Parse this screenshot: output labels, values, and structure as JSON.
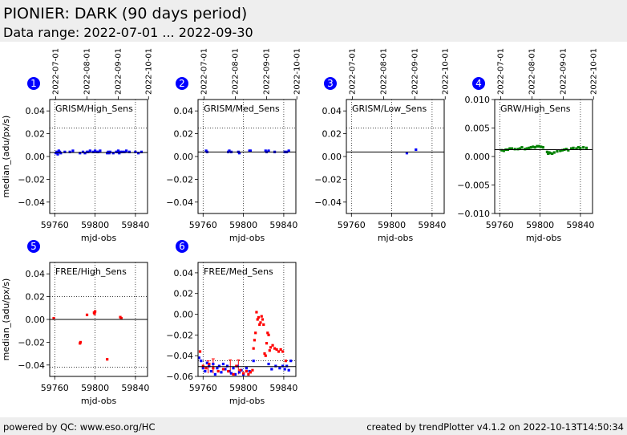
{
  "header": {
    "title": "PIONIER: DARK (90 days period)",
    "subtitle": "Data range: 2022-07-01 ... 2022-09-30"
  },
  "footer": {
    "left": "powered by QC: www.eso.org/HC",
    "right": "created by trendPlotter v4.1.2 on 2022-10-13T14:50:34"
  },
  "colors": {
    "blue": "#0000ff",
    "green": "#008000",
    "red": "#ff0000",
    "badge": "#0000ff"
  },
  "chart_data": [
    {
      "type": "scatter",
      "index": "1",
      "label": "GRISM/High_Sens",
      "xlabel": "mjd-obs",
      "ylabel": "median_(adu/px/s)",
      "xlim": [
        59755,
        59852
      ],
      "ylim": [
        -0.05,
        0.05
      ],
      "xticks": [
        59760,
        59800,
        59840
      ],
      "xtick_labels": [
        "59760",
        "59800",
        "59840"
      ],
      "yticks": [
        0.04,
        0.02,
        0.0,
        -0.02,
        -0.04
      ],
      "ytick_labels": [
        "0.04",
        "0.02",
        "0.00",
        "−0.02",
        "−0.04"
      ],
      "top_ticks": [
        59761,
        59792,
        59823,
        59853
      ],
      "top_labels": [
        "2022-07-01",
        "2022-08-01",
        "2022-09-01",
        "2022-10-01"
      ],
      "hline": 0.0035,
      "dotted_hlines": [
        0.025
      ],
      "series": [
        {
          "color": "blue",
          "x": [
            59761,
            59762,
            59763,
            59764,
            59765,
            59766,
            59770,
            59775,
            59778,
            59785,
            59788,
            59790,
            59792,
            59793,
            59795,
            59798,
            59800,
            59802,
            59803,
            59805,
            59812,
            59813,
            59814,
            59815,
            59818,
            59821,
            59822,
            59823,
            59824,
            59825,
            59827,
            59829,
            59831,
            59834,
            59840,
            59843,
            59846
          ],
          "y": [
            0.003,
            0.004,
            0.002,
            0.005,
            0.004,
            0.003,
            0.004,
            0.004,
            0.005,
            0.003,
            0.004,
            0.003,
            0.004,
            0.004,
            0.005,
            0.004,
            0.005,
            0.004,
            0.004,
            0.005,
            0.003,
            0.004,
            0.003,
            0.004,
            0.003,
            0.004,
            0.004,
            0.005,
            0.003,
            0.004,
            0.004,
            0.004,
            0.005,
            0.004,
            0.004,
            0.003,
            0.004
          ]
        }
      ]
    },
    {
      "type": "scatter",
      "index": "2",
      "label": "GRISM/Med_Sens",
      "xlabel": "mjd-obs",
      "ylabel": "",
      "xlim": [
        59755,
        59852
      ],
      "ylim": [
        -0.05,
        0.05
      ],
      "xticks": [
        59760,
        59800,
        59840
      ],
      "xtick_labels": [
        "59760",
        "59800",
        "59840"
      ],
      "yticks": [
        0.04,
        0.02,
        0.0,
        -0.02,
        -0.04
      ],
      "ytick_labels": [
        "0.04",
        "0.02",
        "0.00",
        "−0.02",
        "−0.04"
      ],
      "top_ticks": [
        59761,
        59792,
        59823,
        59853
      ],
      "top_labels": [
        "2022-07-01",
        "2022-08-01",
        "2022-09-01",
        "2022-10-01"
      ],
      "hline": 0.004,
      "dotted_hlines": [
        0.025
      ],
      "series": [
        {
          "color": "blue",
          "x": [
            59763,
            59764,
            59785,
            59786,
            59788,
            59795,
            59796,
            59806,
            59807,
            59822,
            59823,
            59825,
            59831,
            59841,
            59843,
            59845
          ],
          "y": [
            0.005,
            0.004,
            0.004,
            0.005,
            0.004,
            0.004,
            0.003,
            0.005,
            0.005,
            0.005,
            0.004,
            0.005,
            0.004,
            0.004,
            0.004,
            0.005
          ]
        }
      ]
    },
    {
      "type": "scatter",
      "index": "3",
      "label": "GRISM/Low_Sens",
      "xlabel": "mjd-obs",
      "ylabel": "",
      "xlim": [
        59755,
        59852
      ],
      "ylim": [
        -0.05,
        0.05
      ],
      "xticks": [
        59760,
        59800,
        59840
      ],
      "xtick_labels": [
        "59760",
        "59800",
        "59840"
      ],
      "yticks": [
        0.04,
        0.02,
        0.0,
        -0.02,
        -0.04
      ],
      "ytick_labels": [
        "0.04",
        "0.02",
        "0.00",
        "−0.02",
        "−0.04"
      ],
      "top_ticks": [
        59761,
        59792,
        59823,
        59853
      ],
      "top_labels": [
        "2022-07-01",
        "2022-08-01",
        "2022-09-01",
        "2022-10-01"
      ],
      "hline": 0.004,
      "dotted_hlines": [
        0.025
      ],
      "series": [
        {
          "color": "blue",
          "x": [
            59815,
            59824
          ],
          "y": [
            0.003,
            0.006
          ]
        }
      ]
    },
    {
      "type": "scatter",
      "index": "4",
      "label": "GRW/High_Sens",
      "xlabel": "mjd-obs",
      "ylabel": "",
      "xlim": [
        59755,
        59852
      ],
      "ylim": [
        -0.01,
        0.01
      ],
      "xticks": [
        59760,
        59800,
        59840
      ],
      "xtick_labels": [
        "59760",
        "59800",
        "59840"
      ],
      "yticks": [
        0.01,
        0.005,
        0.0,
        -0.005,
        -0.01
      ],
      "ytick_labels": [
        "0.010",
        "0.005",
        "0.000",
        "−0.005",
        "−0.010"
      ],
      "top_ticks": [
        59761,
        59792,
        59823,
        59853
      ],
      "top_labels": [
        "2022-07-01",
        "2022-08-01",
        "2022-09-01",
        "2022-10-01"
      ],
      "hline": 0.0012,
      "dotted_hlines": [],
      "series": [
        {
          "color": "green",
          "x": [
            59762,
            59764,
            59766,
            59768,
            59770,
            59772,
            59775,
            59778,
            59780,
            59782,
            59785,
            59787,
            59789,
            59791,
            59793,
            59795,
            59797,
            59799,
            59801,
            59803,
            59807,
            59808,
            59809,
            59810,
            59812,
            59814,
            59817,
            59820,
            59822,
            59824,
            59826,
            59828,
            59831,
            59833,
            59836,
            59838,
            59840,
            59843,
            59846
          ],
          "y": [
            0.0011,
            0.001,
            0.0012,
            0.0012,
            0.0014,
            0.0014,
            0.0013,
            0.0013,
            0.0014,
            0.0016,
            0.0013,
            0.0014,
            0.0015,
            0.0016,
            0.0017,
            0.0016,
            0.0018,
            0.0018,
            0.0017,
            0.0016,
            0.0008,
            0.0005,
            0.0007,
            0.0006,
            0.0005,
            0.0007,
            0.0009,
            0.001,
            0.0011,
            0.0012,
            0.0013,
            0.0011,
            0.0014,
            0.0015,
            0.0014,
            0.0016,
            0.0015,
            0.0016,
            0.0015
          ]
        }
      ]
    },
    {
      "type": "scatter",
      "index": "5",
      "label": "FREE/High_Sens",
      "xlabel": "mjd-obs",
      "ylabel": "median_(adu/px/s)",
      "xlim": [
        59755,
        59852
      ],
      "ylim": [
        -0.05,
        0.05
      ],
      "xticks": [
        59760,
        59800,
        59840
      ],
      "xtick_labels": [
        "59760",
        "59800",
        "59840"
      ],
      "yticks": [
        0.04,
        0.02,
        0.0,
        -0.02,
        -0.04
      ],
      "ytick_labels": [
        "0.04",
        "0.02",
        "0.00",
        "−0.02",
        "−0.04"
      ],
      "top_ticks": [],
      "top_labels": [],
      "hline": 0.0,
      "dotted_hlines": [
        0.02,
        -0.042
      ],
      "series": [
        {
          "color": "red",
          "x": [
            59759,
            59785,
            59785.5,
            59792,
            59799,
            59799.5,
            59800,
            59812,
            59825,
            59826
          ],
          "y": [
            0.001,
            -0.021,
            -0.02,
            0.004,
            0.006,
            0.005,
            0.007,
            -0.035,
            0.002,
            0.001
          ]
        }
      ]
    },
    {
      "type": "scatter",
      "index": "6",
      "label": "FREE/Med_Sens",
      "xlabel": "mjd-obs",
      "ylabel": "",
      "xlim": [
        59755,
        59852
      ],
      "ylim": [
        -0.06,
        0.05
      ],
      "xticks": [
        59760,
        59800,
        59840
      ],
      "xtick_labels": [
        "59760",
        "59800",
        "59840"
      ],
      "yticks": [
        0.04,
        0.02,
        0.0,
        -0.02,
        -0.04,
        -0.06
      ],
      "ytick_labels": [
        "0.04",
        "0.02",
        "0.00",
        "−0.02",
        "−0.04",
        "−0.06"
      ],
      "top_ticks": [],
      "top_labels": [],
      "hline": -0.0505,
      "dotted_hlines": [
        -0.045
      ],
      "errorbars": {
        "color": "red",
        "x": [
          59765,
          59770,
          59787,
          59795
        ],
        "y_low": [
          -0.057,
          -0.057,
          -0.058,
          -0.058
        ],
        "y_high": [
          -0.045,
          -0.043,
          -0.044,
          -0.044
        ]
      },
      "series": [
        {
          "color": "blue",
          "x": [
            59756,
            59758,
            59760,
            59762,
            59764,
            59766,
            59768,
            59770,
            59772,
            59774,
            59776,
            59778,
            59780,
            59782,
            59784,
            59786,
            59788,
            59790,
            59792,
            59794,
            59796,
            59798,
            59800,
            59803,
            59806,
            59810,
            59825,
            59828,
            59832,
            59836,
            59839,
            59841,
            59843,
            59845,
            59847
          ],
          "y": [
            -0.042,
            -0.045,
            -0.052,
            -0.055,
            -0.047,
            -0.05,
            -0.055,
            -0.048,
            -0.058,
            -0.052,
            -0.05,
            -0.056,
            -0.048,
            -0.053,
            -0.05,
            -0.055,
            -0.057,
            -0.052,
            -0.058,
            -0.05,
            -0.056,
            -0.054,
            -0.058,
            -0.052,
            -0.055,
            -0.045,
            -0.048,
            -0.053,
            -0.05,
            -0.052,
            -0.05,
            -0.053,
            -0.05,
            -0.054,
            -0.045
          ]
        },
        {
          "color": "red",
          "x": [
            59757,
            59760,
            59763,
            59766,
            59770,
            59775,
            59780,
            59785,
            59790,
            59793,
            59797,
            59800,
            59803,
            59805,
            59807,
            59809,
            59810,
            59811,
            59812,
            59813,
            59814,
            59815,
            59816,
            59817,
            59818,
            59819,
            59820,
            59821,
            59822,
            59823,
            59824,
            59825,
            59826,
            59827,
            59829,
            59831,
            59833,
            59835,
            59837,
            59839,
            59842
          ],
          "y": [
            -0.036,
            -0.05,
            -0.052,
            -0.048,
            -0.052,
            -0.055,
            -0.053,
            -0.055,
            -0.058,
            -0.05,
            -0.054,
            -0.057,
            -0.055,
            -0.058,
            -0.056,
            -0.054,
            -0.033,
            -0.025,
            -0.018,
            0.002,
            -0.005,
            -0.003,
            -0.01,
            -0.008,
            -0.002,
            -0.005,
            -0.01,
            -0.038,
            -0.04,
            -0.028,
            -0.018,
            -0.02,
            -0.035,
            -0.032,
            -0.03,
            -0.033,
            -0.034,
            -0.036,
            -0.034,
            -0.036,
            -0.045
          ]
        }
      ]
    }
  ]
}
